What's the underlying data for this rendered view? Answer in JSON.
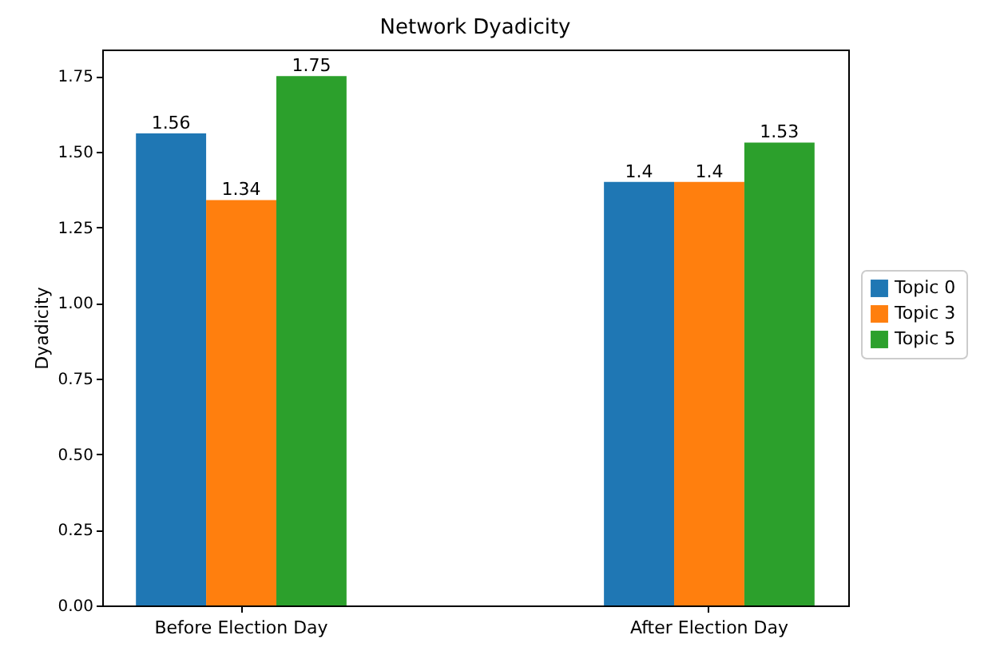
{
  "chart_data": {
    "type": "bar",
    "title": "Network Dyadicity",
    "ylabel": "Dyadicity",
    "categories": [
      "Before Election Day",
      "After Election Day"
    ],
    "series": [
      {
        "name": "Topic 0",
        "color": "#1f77b4",
        "values": [
          1.56,
          1.4
        ]
      },
      {
        "name": "Topic 3",
        "color": "#ff7f0e",
        "values": [
          1.34,
          1.4
        ]
      },
      {
        "name": "Topic 5",
        "color": "#2ca02c",
        "values": [
          1.75,
          1.53
        ]
      }
    ],
    "ylim": [
      0,
      1.8375
    ],
    "yticks": [
      {
        "value": 0,
        "label": "0.00"
      },
      {
        "value": 0.25,
        "label": "0.25"
      },
      {
        "value": 0.5,
        "label": "0.50"
      },
      {
        "value": 0.75,
        "label": "0.75"
      },
      {
        "value": 1,
        "label": "1.00"
      },
      {
        "value": 1.25,
        "label": "1.25"
      },
      {
        "value": 1.5,
        "label": "1.50"
      },
      {
        "value": 1.75,
        "label": "1.75"
      }
    ],
    "data_labels": true,
    "legend": "right"
  }
}
